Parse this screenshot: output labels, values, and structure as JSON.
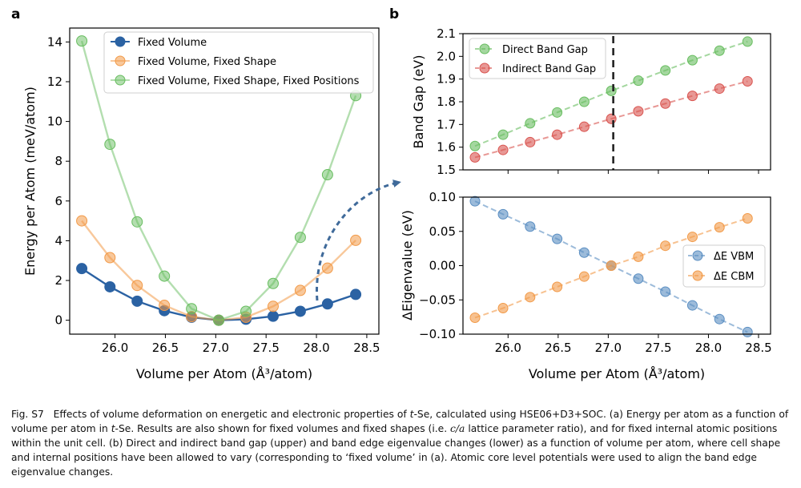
{
  "panel_labels": {
    "a": "a",
    "b": "b"
  },
  "colors": {
    "blue": "#2b62a3",
    "orange": "#f29a48",
    "green": "#67bd5f",
    "red": "#d9534f",
    "blue_light": "#5a8ec2",
    "arrow": "#3f6a9a"
  },
  "chart_data": [
    {
      "id": "a",
      "type": "line",
      "xlabel": "Volume per Atom (Å³/atom)",
      "ylabel": "Energy per Atom (meV/atom)",
      "xlim": [
        25.55,
        28.62
      ],
      "ylim": [
        -0.7,
        14.7
      ],
      "xticks": [
        26.0,
        26.5,
        27.0,
        27.5,
        28.0,
        28.5
      ],
      "xtick_labels": [
        "26.0",
        "26.5",
        "27.0",
        "27.5",
        "28.0",
        "28.5"
      ],
      "yticks": [
        0,
        2,
        4,
        6,
        8,
        10,
        12,
        14
      ],
      "ytick_labels": [
        "0",
        "2",
        "4",
        "6",
        "8",
        "10",
        "12",
        "14"
      ],
      "x": [
        25.67,
        25.95,
        26.22,
        26.49,
        26.76,
        27.03,
        27.3,
        27.57,
        27.84,
        28.11,
        28.39
      ],
      "series": [
        {
          "name": "Fixed Volume",
          "color": "#2b62a3",
          "alpha": 1.0,
          "values": [
            2.6,
            1.68,
            0.96,
            0.48,
            0.15,
            0.0,
            0.05,
            0.2,
            0.45,
            0.82,
            1.3
          ]
        },
        {
          "name": "Fixed Volume, Fixed Shape",
          "color": "#f29a48",
          "alpha": 0.55,
          "values": [
            5.0,
            3.15,
            1.75,
            0.75,
            0.18,
            0.0,
            0.15,
            0.7,
            1.5,
            2.62,
            4.02
          ]
        },
        {
          "name": "Fixed Volume, Fixed Shape, Fixed Positions",
          "color": "#67bd5f",
          "alpha": 0.5,
          "values": [
            14.05,
            8.85,
            4.95,
            2.22,
            0.58,
            0.0,
            0.45,
            1.85,
            4.17,
            7.32,
            11.3
          ]
        }
      ],
      "legend": "upper-center"
    },
    {
      "id": "b-upper",
      "type": "line",
      "xlabel": "",
      "ylabel": "Band Gap (eV)",
      "xlim": [
        25.55,
        28.62
      ],
      "ylim": [
        1.5,
        2.1
      ],
      "xticks": [
        26.0,
        26.5,
        27.0,
        27.5,
        28.0,
        28.5
      ],
      "xtick_labels": [
        "",
        "",
        "",
        "",
        "",
        ""
      ],
      "yticks": [
        1.5,
        1.6,
        1.7,
        1.8,
        1.9,
        2.0,
        2.1
      ],
      "ytick_labels": [
        "1.5",
        "1.6",
        "1.7",
        "1.8",
        "1.9",
        "2.0",
        "2.1"
      ],
      "x": [
        25.67,
        25.95,
        26.22,
        26.49,
        26.76,
        27.03,
        27.3,
        27.57,
        27.84,
        28.11,
        28.39
      ],
      "series": [
        {
          "name": "Direct Band Gap",
          "color": "#67bd5f",
          "values": [
            1.605,
            1.655,
            1.705,
            1.753,
            1.8,
            1.848,
            1.893,
            1.938,
            1.983,
            2.025,
            2.065
          ]
        },
        {
          "name": "Indirect Band Gap",
          "color": "#d9534f",
          "values": [
            1.555,
            1.588,
            1.622,
            1.655,
            1.69,
            1.725,
            1.758,
            1.792,
            1.826,
            1.858,
            1.89
          ]
        }
      ],
      "vline_x": 27.05,
      "legend": "upper-left"
    },
    {
      "id": "b-lower",
      "type": "line",
      "xlabel": "Volume per Atom (Å³/atom)",
      "ylabel": "ΔEigenvalue (eV)",
      "xlim": [
        25.55,
        28.62
      ],
      "ylim": [
        -0.1,
        0.1
      ],
      "xticks": [
        26.0,
        26.5,
        27.0,
        27.5,
        28.0,
        28.5
      ],
      "xtick_labels": [
        "26.0",
        "26.5",
        "27.0",
        "27.5",
        "28.0",
        "28.5"
      ],
      "yticks": [
        -0.1,
        -0.05,
        0.0,
        0.05,
        0.1
      ],
      "ytick_labels": [
        "−0.10",
        "−0.05",
        "0.00",
        "0.05",
        "0.10"
      ],
      "x": [
        25.67,
        25.95,
        26.22,
        26.49,
        26.76,
        27.03,
        27.3,
        27.57,
        27.84,
        28.11,
        28.39
      ],
      "series": [
        {
          "name": "ΔE VBM",
          "color": "#5a8ec2",
          "values": [
            0.094,
            0.075,
            0.057,
            0.039,
            0.019,
            0.0,
            -0.019,
            -0.038,
            -0.058,
            -0.078,
            -0.097
          ]
        },
        {
          "name": "ΔE CBM",
          "color": "#f29a48",
          "values": [
            -0.076,
            -0.062,
            -0.046,
            -0.031,
            -0.016,
            0.0,
            0.013,
            0.029,
            0.042,
            0.056,
            0.069
          ]
        }
      ],
      "legend": "center-right"
    }
  ],
  "caption": {
    "fig_label": "Fig. S7",
    "lead": "Effects of volume deformation on energetic and electronic properties of ",
    "tse_1": "t",
    "se_1": "-Se, calculated using HSE06+D3+SOC. (a) Energy per atom as a function of volume per atom in ",
    "tse_2": "t",
    "se_2": "-Se. Results are also shown for fixed volumes and fixed shapes (i.e. ",
    "ca": "c/a",
    "rest": " lattice parameter ratio), and for fixed internal atomic positions within the unit cell. (b) Direct and indirect band gap (upper) and band edge eigenvalue changes (lower) as a function of volume per atom, where cell shape and internal positions have been allowed to vary (corresponding to ‘fixed volume’ in (a). Atomic core level potentials were used to align the band edge eigenvalue changes."
  }
}
